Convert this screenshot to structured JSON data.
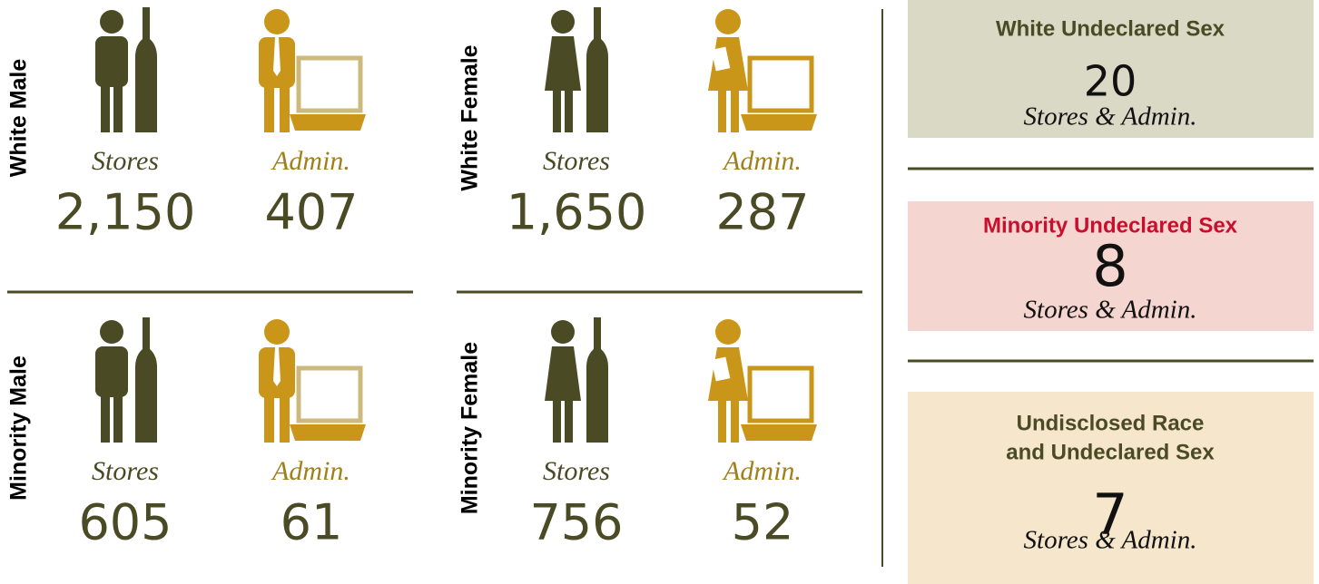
{
  "quadrants": [
    {
      "label": "White Male",
      "stores": {
        "label": "Stores",
        "value": "2,150"
      },
      "admin": {
        "label": "Admin.",
        "value": "407"
      }
    },
    {
      "label": "White Female",
      "stores": {
        "label": "Stores",
        "value": "1,650"
      },
      "admin": {
        "label": "Admin.",
        "value": "287"
      }
    },
    {
      "label": "Minority Male",
      "stores": {
        "label": "Stores",
        "value": "605"
      },
      "admin": {
        "label": "Admin.",
        "value": "61"
      }
    },
    {
      "label": "Minority Female",
      "stores": {
        "label": "Stores",
        "value": "756"
      },
      "admin": {
        "label": "Admin.",
        "value": "52"
      }
    }
  ],
  "boxes": [
    {
      "title": [
        "White Undeclared Sex"
      ],
      "value": "20",
      "subtitle": "Stores & Admin."
    },
    {
      "title": [
        "Minority Undeclared Sex"
      ],
      "value": "8",
      "subtitle": "Stores & Admin."
    },
    {
      "title": [
        "Undisclosed Race",
        "and Undeclared Sex"
      ],
      "value": "7",
      "subtitle": "Stores & Admin."
    }
  ]
}
